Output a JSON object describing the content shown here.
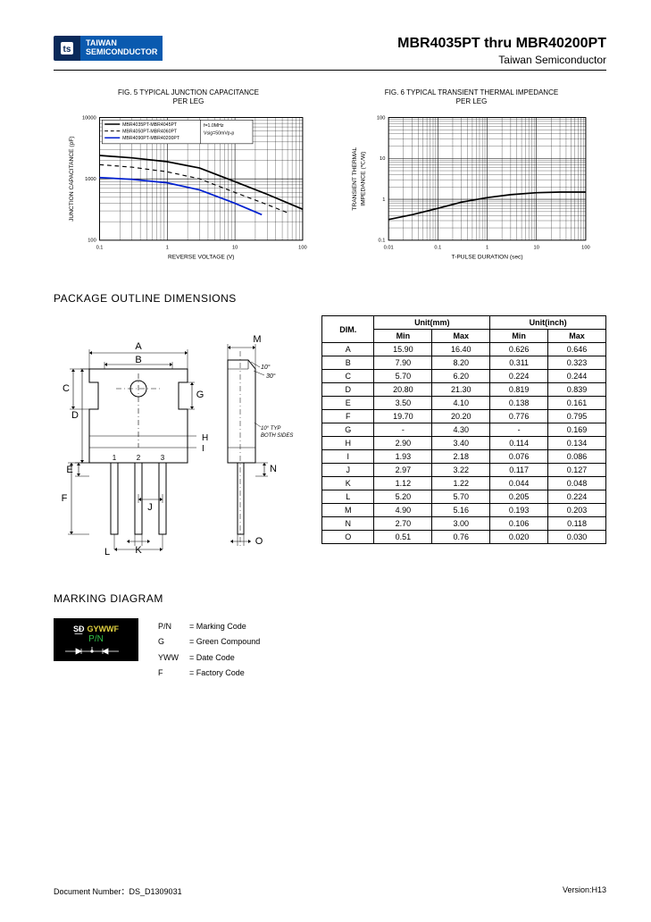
{
  "header": {
    "logo_brand1": "TAIWAN",
    "logo_brand2": "SEMICONDUCTOR",
    "title": "MBR4035PT thru MBR40200PT",
    "subtitle": "Taiwan Semiconductor"
  },
  "chart1": {
    "title1": "FIG. 5 TYPICAL JUNCTION CAPACITANCE",
    "title2": "PER LEG",
    "ylabel": "JUNCTION CAPACITANCE (pF)",
    "xlabel": "REVERSE VOLTAGE (V)",
    "x_ticks": [
      "0.1",
      "1",
      "10",
      "100"
    ],
    "y_ticks": [
      "100",
      "1000",
      "10000"
    ],
    "legend": {
      "s1": "MBR4035PT-MBR4045PT",
      "s2": "MBR4050PT-MBR4060PT",
      "s3": "MBR4090PT-MBR40200PT",
      "cond1": "f=1.0MHz",
      "cond2": "Vsig=50mVp-p"
    },
    "colors": {
      "s1": "#000000",
      "s2": "#000000",
      "s3": "#0020d0",
      "grid": "#000000",
      "bg": "#ffffff"
    },
    "series": {
      "s1": [
        [
          0.1,
          2400
        ],
        [
          0.3,
          2200
        ],
        [
          1,
          1900
        ],
        [
          3,
          1500
        ],
        [
          10,
          900
        ],
        [
          30,
          560
        ],
        [
          100,
          320
        ]
      ],
      "s2": [
        [
          0.1,
          1700
        ],
        [
          0.3,
          1550
        ],
        [
          1,
          1300
        ],
        [
          3,
          1000
        ],
        [
          10,
          600
        ],
        [
          30,
          380
        ],
        [
          60,
          280
        ]
      ],
      "s3": [
        [
          0.1,
          1050
        ],
        [
          0.3,
          980
        ],
        [
          1,
          860
        ],
        [
          3,
          660
        ],
        [
          10,
          400
        ],
        [
          25,
          260
        ]
      ]
    },
    "xlim": [
      0.1,
      100
    ],
    "ylim": [
      100,
      10000
    ]
  },
  "chart2": {
    "title1": "FIG. 6 TYPICAL TRANSIENT THERMAL IMPEDANCE",
    "title2": "PER LEG",
    "ylabel": "TRANSIENT THERMAL\nIMPEDANCE (℃/W)",
    "xlabel": "T-PULSE DURATION (sec)",
    "x_ticks": [
      "0.01",
      "0.1",
      "1",
      "10",
      "100"
    ],
    "y_ticks": [
      "0.1",
      "1",
      "10",
      "100"
    ],
    "colors": {
      "line": "#000000",
      "grid": "#000000",
      "bg": "#ffffff"
    },
    "series": [
      [
        0.01,
        0.32
      ],
      [
        0.03,
        0.42
      ],
      [
        0.1,
        0.6
      ],
      [
        0.3,
        0.85
      ],
      [
        1,
        1.1
      ],
      [
        3,
        1.3
      ],
      [
        10,
        1.45
      ],
      [
        30,
        1.5
      ],
      [
        100,
        1.5
      ]
    ],
    "xlim": [
      0.01,
      100
    ],
    "ylim": [
      0.1,
      100
    ]
  },
  "sections": {
    "package": "PACKAGE OUTLINE DIMENSIONS",
    "marking": "MARKING DIAGRAM"
  },
  "dim_table": {
    "header": {
      "dim": "DIM.",
      "unit_mm": "Unit(mm)",
      "unit_in": "Unit(inch)",
      "min": "Min",
      "max": "Max"
    },
    "rows": [
      [
        "A",
        "15.90",
        "16.40",
        "0.626",
        "0.646"
      ],
      [
        "B",
        "7.90",
        "8.20",
        "0.311",
        "0.323"
      ],
      [
        "C",
        "5.70",
        "6.20",
        "0.224",
        "0.244"
      ],
      [
        "D",
        "20.80",
        "21.30",
        "0.819",
        "0.839"
      ],
      [
        "E",
        "3.50",
        "4.10",
        "0.138",
        "0.161"
      ],
      [
        "F",
        "19.70",
        "20.20",
        "0.776",
        "0.795"
      ],
      [
        "G",
        "-",
        "4.30",
        "-",
        "0.169"
      ],
      [
        "H",
        "2.90",
        "3.40",
        "0.114",
        "0.134"
      ],
      [
        "I",
        "1.93",
        "2.18",
        "0.076",
        "0.086"
      ],
      [
        "J",
        "2.97",
        "3.22",
        "0.117",
        "0.127"
      ],
      [
        "K",
        "1.12",
        "1.22",
        "0.044",
        "0.048"
      ],
      [
        "L",
        "5.20",
        "5.70",
        "0.205",
        "0.224"
      ],
      [
        "M",
        "4.90",
        "5.16",
        "0.193",
        "0.203"
      ],
      [
        "N",
        "2.70",
        "3.00",
        "0.106",
        "0.118"
      ],
      [
        "O",
        "0.51",
        "0.76",
        "0.020",
        "0.030"
      ]
    ]
  },
  "marking": {
    "block_top_sigil": "S͟Ð",
    "block_ywwf": "GYWWF",
    "block_pn": "P/N",
    "legend": [
      [
        "P/N",
        "= Marking Code"
      ],
      [
        "G",
        "= Green Compound"
      ],
      [
        "YWW",
        "= Date Code"
      ],
      [
        "F",
        "= Factory Code"
      ]
    ]
  },
  "footer": {
    "doc": "Document Number：DS_D1309031",
    "ver": "Version:H13"
  },
  "package_labels": {
    "A": "A",
    "B": "B",
    "C": "C",
    "D": "D",
    "E": "E",
    "F": "F",
    "G": "G",
    "H": "H",
    "I": "I",
    "J": "J",
    "K": "K",
    "L": "L",
    "M": "M",
    "N": "N",
    "O": "O",
    "p1": "1",
    "p2": "2",
    "p3": "3",
    "ang1": "10°",
    "ang2": "30°",
    "typ": "10° TYP",
    "sides": "BOTH SIDES"
  }
}
